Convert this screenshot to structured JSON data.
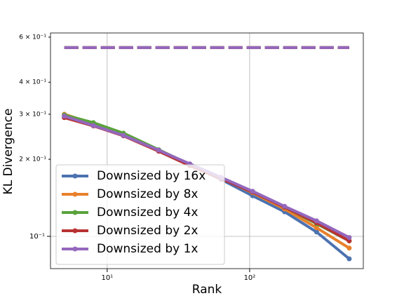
{
  "chart_data": {
    "type": "line",
    "xlabel": "Rank",
    "ylabel": "KL Divergence",
    "xscale": "log",
    "yscale": "log",
    "x": [
      5,
      8,
      13,
      23,
      38,
      63,
      105,
      176,
      295,
      500
    ],
    "xlim": [
      4,
      628
    ],
    "ylim": [
      0.0748,
      0.623
    ],
    "xticks": [
      {
        "value": 10,
        "label": "10¹"
      },
      {
        "value": 100,
        "label": "10²"
      }
    ],
    "yticks": [
      {
        "value": 0.1,
        "label": "10⁻¹"
      }
    ],
    "yticks_minor": [
      {
        "value": 0.2,
        "label": "2 × 10⁻¹"
      },
      {
        "value": 0.3,
        "label": "3 × 10⁻¹"
      },
      {
        "value": 0.4,
        "label": "4 × 10⁻¹"
      },
      {
        "value": 0.6,
        "label": "6 × 10⁻¹"
      }
    ],
    "grid": true,
    "legend": "lower left",
    "series": [
      {
        "name": "Downsized by 16x",
        "color": "#4c72b0",
        "dashed_value": 0.546,
        "values": [
          0.296,
          0.273,
          0.248,
          0.216,
          0.19,
          0.167,
          0.144,
          0.1247,
          0.104,
          0.0817
        ]
      },
      {
        "name": "Downsized by 8x",
        "color": "#e8812b",
        "dashed_value": 0.546,
        "values": [
          0.3,
          0.275,
          0.25,
          0.217,
          0.191,
          0.169,
          0.148,
          0.128,
          0.108,
          0.09
        ]
      },
      {
        "name": "Downsized by 4x",
        "color": "#5aa33c",
        "dashed_value": 0.546,
        "values": [
          0.298,
          0.278,
          0.253,
          0.218,
          0.191,
          0.169,
          0.149,
          0.13,
          0.112,
          0.096
        ]
      },
      {
        "name": "Downsized by 2x",
        "color": "#b83232",
        "dashed_value": 0.546,
        "values": [
          0.291,
          0.27,
          0.247,
          0.215,
          0.189,
          0.168,
          0.149,
          0.13,
          0.113,
          0.096
        ]
      },
      {
        "name": "Downsized by 1x",
        "color": "#9467bd",
        "dashed_value": 0.546,
        "values": [
          0.295,
          0.271,
          0.248,
          0.217,
          0.192,
          0.17,
          0.15,
          0.131,
          0.115,
          0.099
        ]
      }
    ]
  }
}
